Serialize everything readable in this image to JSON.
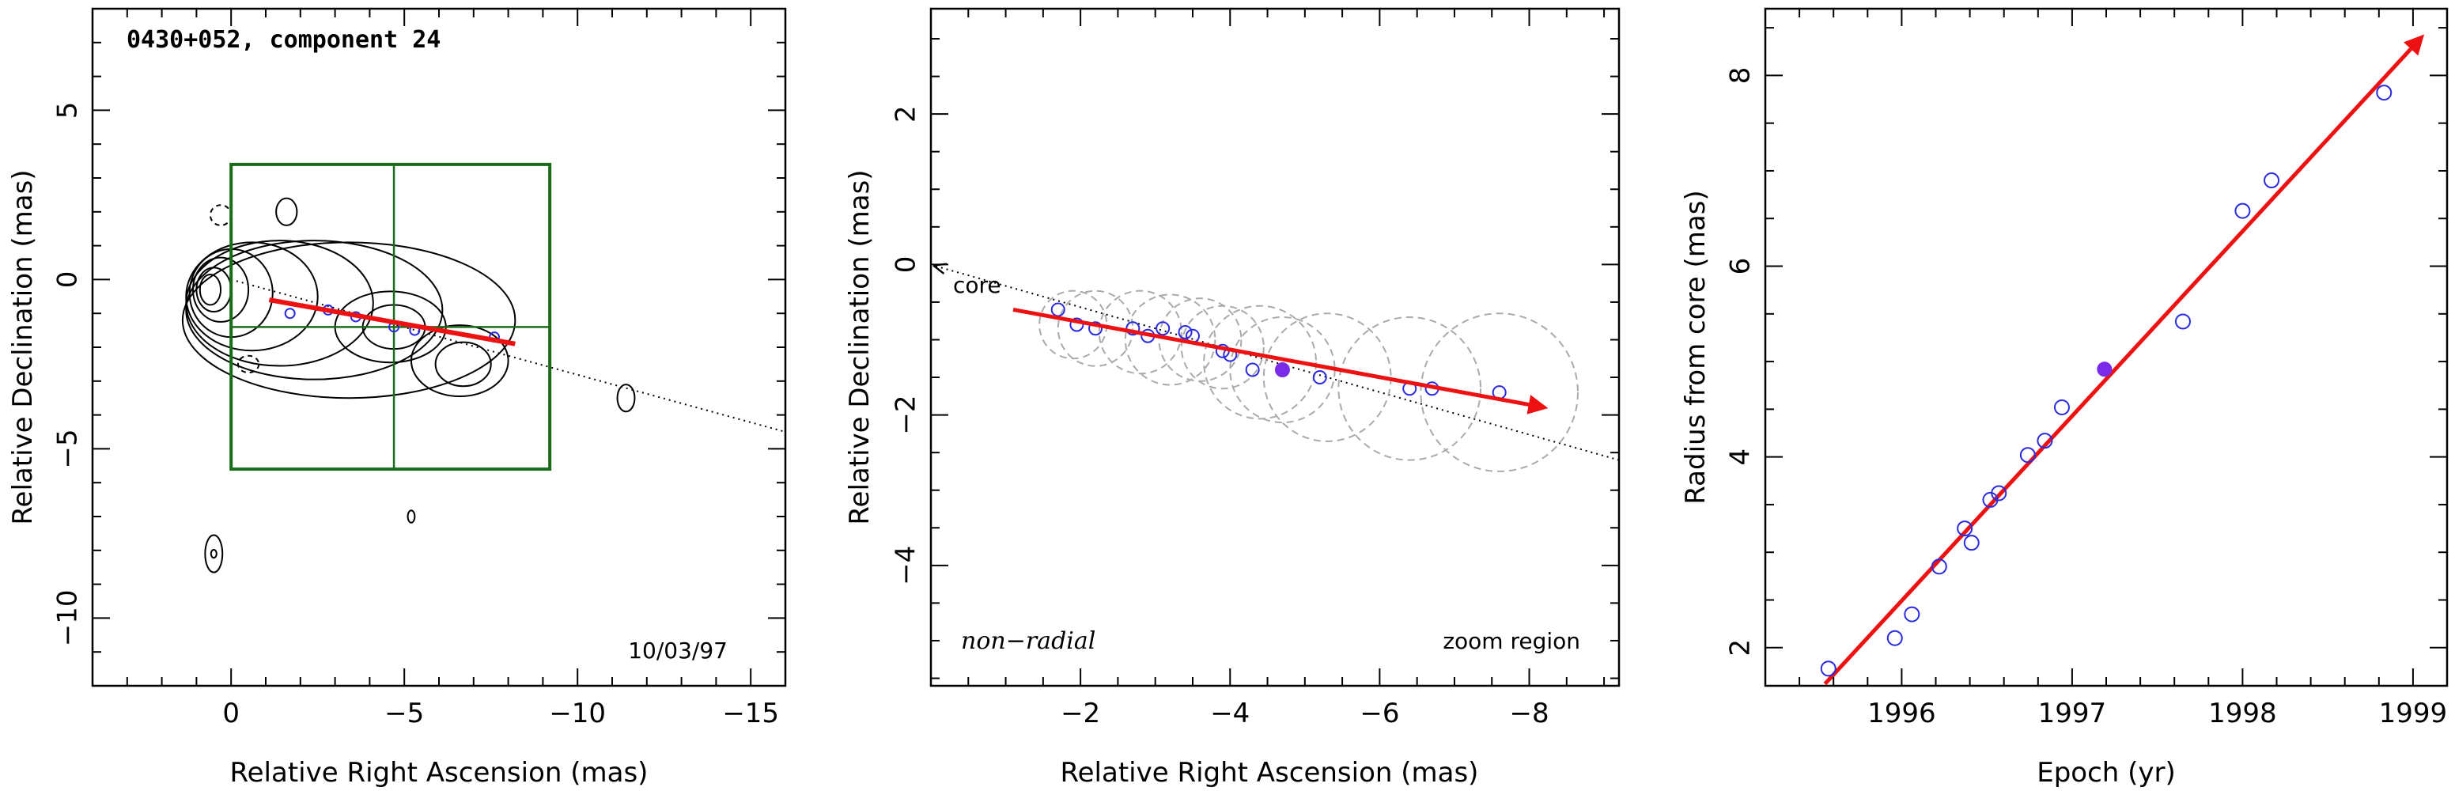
{
  "colors": {
    "ink": "#000000",
    "velocity_arrow": "#ee1111",
    "measured_point": "#2a2adf",
    "highlight_point": "#7a2be8",
    "zoom_box": "#1a6b1a",
    "fit_circle": "#aaaaaa"
  },
  "chart_data": [
    {
      "type": "scatter",
      "panel": "vlbi-image",
      "title": "0430+052, component 24",
      "xlabel": "Relative Right Ascension (mas)",
      "ylabel": "Relative Declination (mas)",
      "xlim": [
        4,
        -16
      ],
      "ylim": [
        -12,
        8
      ],
      "x_ticks": [
        0,
        -5,
        -10,
        -15
      ],
      "y_ticks": [
        5,
        0,
        -5,
        -10
      ],
      "date_label": "10/03/97",
      "zoom_region": {
        "x": [
          0,
          -9.2
        ],
        "y": [
          3.4,
          -5.6
        ],
        "cross": [
          -4.7,
          -1.4
        ]
      },
      "trajectory_line": {
        "x": [
          0,
          -16
        ],
        "y": [
          0,
          -4.5
        ]
      },
      "velocity_vector": {
        "x": [
          -1.1,
          -8.2
        ],
        "y": [
          -0.6,
          -1.9
        ]
      },
      "positions": {
        "x": [
          -1.7,
          -2.8,
          -3.6,
          -4.7,
          -5.3,
          -7.6
        ],
        "y": [
          -1.0,
          -0.9,
          -1.1,
          -1.4,
          -1.5,
          -1.7
        ]
      },
      "contours": [
        {
          "cx": 0.6,
          "cy": -0.3,
          "rx": 0.3,
          "ry": 0.45
        },
        {
          "cx": 0.5,
          "cy": -0.3,
          "rx": 0.5,
          "ry": 0.65
        },
        {
          "cx": 0.3,
          "cy": -0.3,
          "rx": 0.8,
          "ry": 0.95
        },
        {
          "cx": 0.0,
          "cy": -0.4,
          "rx": 1.2,
          "ry": 1.3
        },
        {
          "cx": -0.6,
          "cy": -0.5,
          "rx": 1.9,
          "ry": 1.6
        },
        {
          "cx": -1.4,
          "cy": -0.7,
          "rx": 2.7,
          "ry": 1.85
        },
        {
          "cx": -2.4,
          "cy": -0.9,
          "rx": 3.7,
          "ry": 2.05
        },
        {
          "cx": -3.4,
          "cy": -1.2,
          "rx": 4.8,
          "ry": 2.3
        },
        {
          "cx": -4.7,
          "cy": -1.4,
          "rx": 0.9,
          "ry": 0.65
        },
        {
          "cx": -4.6,
          "cy": -1.4,
          "rx": 1.6,
          "ry": 1.05
        },
        {
          "cx": -6.7,
          "cy": -2.5,
          "rx": 0.8,
          "ry": 0.65
        },
        {
          "cx": -6.6,
          "cy": -2.4,
          "rx": 1.4,
          "ry": 1.05
        },
        {
          "cx": -1.6,
          "cy": 2.0,
          "rx": 0.3,
          "ry": 0.4
        },
        {
          "cx": -11.4,
          "cy": -3.5,
          "rx": 0.25,
          "ry": 0.4
        },
        {
          "cx": -5.2,
          "cy": -7.0,
          "rx": 0.1,
          "ry": 0.18
        },
        {
          "cx": 0.5,
          "cy": -8.1,
          "rx": 0.25,
          "ry": 0.55
        },
        {
          "cx": 0.5,
          "cy": -8.1,
          "rx": 0.08,
          "ry": 0.12
        }
      ],
      "negative_contours": [
        {
          "cx": 0.3,
          "cy": 1.9,
          "rx": 0.3,
          "ry": 0.3
        },
        {
          "cx": -0.5,
          "cy": -2.5,
          "rx": 0.3,
          "ry": 0.25
        }
      ]
    },
    {
      "type": "scatter",
      "panel": "zoom",
      "xlabel": "Relative Right Ascension (mas)",
      "ylabel": "Relative Declination (mas)",
      "xlim": [
        0,
        -9.2
      ],
      "ylim": [
        -5.6,
        3.4
      ],
      "x_ticks": [
        -2,
        -4,
        -6,
        -8
      ],
      "y_ticks": [
        2,
        0,
        -2,
        -4
      ],
      "core_label": "core",
      "left_note": "non−radial",
      "right_note": "zoom region",
      "trajectory_line": {
        "x": [
          0,
          -9.2
        ],
        "y": [
          0,
          -2.6
        ]
      },
      "velocity_vector": {
        "x": [
          -1.1,
          -8.2
        ],
        "y": [
          -0.6,
          -1.9
        ]
      },
      "points": {
        "x": [
          -1.7,
          -1.95,
          -2.2,
          -2.7,
          -2.9,
          -3.1,
          -3.4,
          -3.5,
          -3.9,
          -4.0,
          -4.3,
          -5.2,
          -6.4,
          -6.7,
          -7.6
        ],
        "y": [
          -0.6,
          -0.8,
          -0.85,
          -0.85,
          -0.95,
          -0.85,
          -0.9,
          -0.95,
          -1.15,
          -1.2,
          -1.4,
          -1.5,
          -1.65,
          -1.65,
          -1.7
        ]
      },
      "highlight_point": {
        "x": -4.7,
        "y": -1.4
      },
      "fit_circles": [
        {
          "x": -1.9,
          "y": -0.8,
          "r": 0.45
        },
        {
          "x": -2.2,
          "y": -0.85,
          "r": 0.5
        },
        {
          "x": -2.8,
          "y": -0.9,
          "r": 0.55
        },
        {
          "x": -3.2,
          "y": -1.0,
          "r": 0.6
        },
        {
          "x": -3.6,
          "y": -1.0,
          "r": 0.55
        },
        {
          "x": -3.9,
          "y": -1.1,
          "r": 0.55
        },
        {
          "x": -4.4,
          "y": -1.3,
          "r": 0.75
        },
        {
          "x": -4.7,
          "y": -1.4,
          "r": 0.7
        },
        {
          "x": -5.3,
          "y": -1.5,
          "r": 0.85
        },
        {
          "x": -6.4,
          "y": -1.65,
          "r": 0.95
        },
        {
          "x": -7.6,
          "y": -1.7,
          "r": 1.05
        }
      ]
    },
    {
      "type": "scatter",
      "panel": "epoch",
      "xlabel": "Epoch (yr)",
      "ylabel": "Radius from core (mas)",
      "xlim": [
        1995.2,
        1999.2
      ],
      "ylim": [
        1.6,
        8.7
      ],
      "x_ticks": [
        1996,
        1997,
        1998,
        1999
      ],
      "y_ticks": [
        2,
        4,
        6,
        8
      ],
      "points": {
        "x": [
          1995.57,
          1995.96,
          1996.06,
          1996.22,
          1996.37,
          1996.41,
          1996.52,
          1996.57,
          1996.74,
          1996.84,
          1996.94,
          1997.65,
          1998.0,
          1998.17,
          1998.83
        ],
        "y": [
          1.78,
          2.1,
          2.35,
          2.85,
          3.25,
          3.1,
          3.55,
          3.62,
          4.02,
          4.17,
          4.52,
          5.42,
          6.58,
          6.9,
          7.82
        ]
      },
      "highlight_point": {
        "x": 1997.19,
        "y": 4.92
      },
      "fit_vector": {
        "x": [
          1995.55,
          1999.05
        ],
        "y": [
          1.62,
          8.4
        ]
      }
    }
  ]
}
